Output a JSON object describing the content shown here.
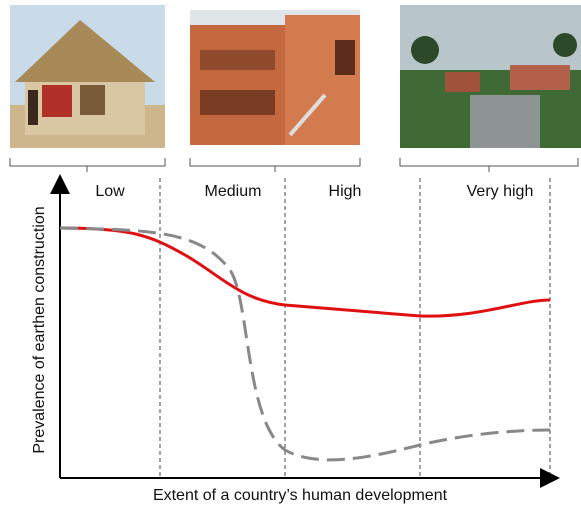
{
  "levels": [
    "Low",
    "Medium",
    "High",
    "Very high"
  ],
  "y_axis_label": "Prevalence of earthen construction",
  "x_axis_label": "Extent of a country’s human development"
}
